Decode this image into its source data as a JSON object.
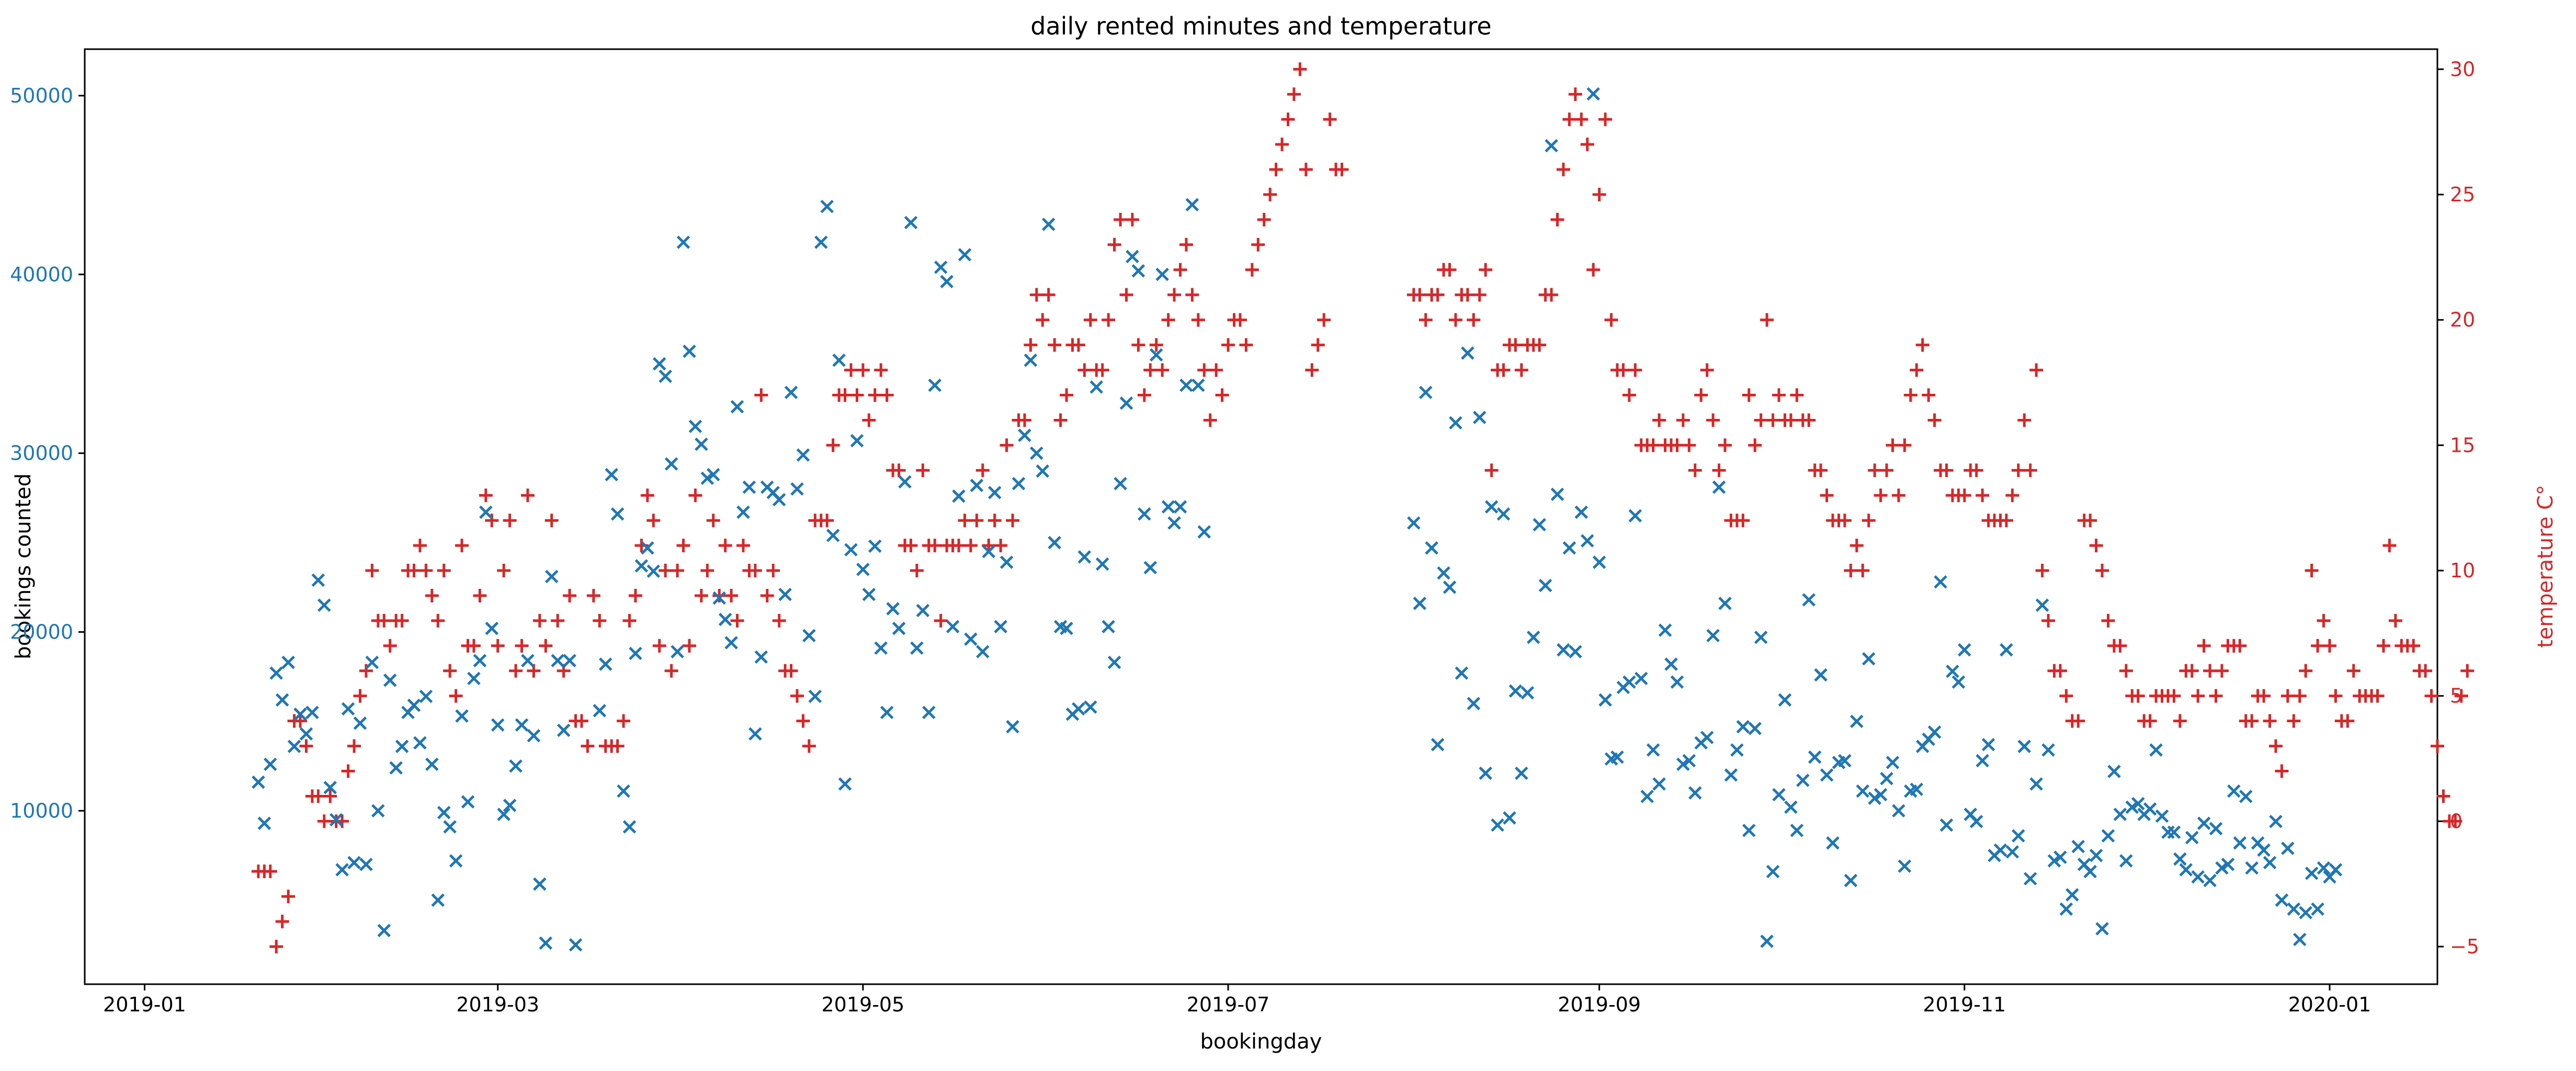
{
  "chart_data": {
    "type": "scatter",
    "title": "daily rented minutes and temperature",
    "xlabel": "bookingday",
    "ylabel_left": "bookings counted",
    "ylabel_right": "temperature C°",
    "xlim": [
      "2018-12-22",
      "2020-01-19"
    ],
    "ylim_left": [
      300,
      52600
    ],
    "ylim_right": [
      -6.5,
      30.8
    ],
    "x_ticks": [
      "2019-01-01",
      "2019-03-01",
      "2019-05-01",
      "2019-07-01",
      "2019-09-01",
      "2019-11-01",
      "2020-01-01"
    ],
    "x_tick_labels": [
      "2019-01",
      "2019-03",
      "2019-05",
      "2019-07",
      "2019-09",
      "2019-11",
      "2020-01"
    ],
    "y_left_ticks": [
      10000,
      20000,
      30000,
      40000,
      50000
    ],
    "y_right_ticks": [
      -5,
      0,
      5,
      10,
      15,
      20,
      25,
      30
    ],
    "grid": false,
    "colors": {
      "bookings": "#1f77b4",
      "temperature": "#d62728"
    },
    "series": [
      {
        "axis": "left",
        "marker": "x",
        "start_date": "2019-01-20",
        "values": [
          11600,
          9300,
          12600,
          17700,
          16200,
          18300,
          13600,
          15400,
          14300,
          15500,
          22900,
          21500,
          11300,
          9500,
          6700,
          15700,
          7100,
          14900,
          7000,
          18300,
          10000,
          3300,
          17300,
          12400,
          13600,
          15500,
          15900,
          13800,
          16400,
          12600,
          5000,
          9900,
          9100,
          7200,
          15300,
          10500,
          17400,
          18400,
          26700,
          20200,
          14800,
          9800,
          10300,
          12500,
          14800,
          18400,
          14200,
          5900,
          2600,
          23100,
          18400,
          14500,
          18400,
          2500
        ],
        "gaps": [
          {
            "start_date": "2019-03-18",
            "values": [
              15600,
              18200,
              28800,
              26600,
              11100,
              9100,
              18800,
              23700,
              24700,
              23400,
              35000,
              34300,
              29400,
              18900,
              41800,
              35700,
              31500,
              30500,
              28600,
              28800,
              21900,
              20700,
              19400,
              32600,
              26700,
              28100,
              14300,
              18600,
              28100,
              27800,
              27400,
              22100,
              33400,
              28000,
              29900,
              19800,
              16400,
              41800,
              43800,
              25400,
              35200,
              11500,
              24600,
              30700,
              23500,
              22100,
              24800,
              19100,
              15500,
              21300,
              20200,
              28400,
              42900,
              19100,
              21200,
              15500,
              33800,
              40400,
              39600,
              20300,
              27600,
              41100,
              19600,
              28200,
              18900,
              24500,
              27800,
              20300,
              23900,
              14700,
              28300,
              31000,
              35200,
              30000,
              29000,
              42800,
              25000,
              20300,
              20200,
              15400,
              15700,
              24200,
              15800,
              33700,
              23800,
              20300,
              18300,
              28300,
              32800,
              41000,
              40200,
              26600,
              23600,
              35500,
              40000,
              27000,
              26100,
              27000,
              33800,
              43900,
              33800,
              25600
            ]
          },
          {
            "start_date": "2019-08-01",
            "values": [
              26100,
              21600,
              33400,
              24700,
              13700,
              23300,
              22500,
              31700,
              17700,
              35600,
              16000,
              32000,
              12100,
              27000,
              9200,
              26600,
              9600,
              16700,
              12100,
              16600,
              19700,
              26000,
              22600,
              47200,
              27700,
              19000,
              24700,
              18900,
              26700,
              25100,
              50100,
              23900,
              16200,
              12900,
              13000,
              16900,
              17200,
              26500,
              17400,
              10800,
              13400,
              11500,
              20100,
              18200,
              17200,
              12600,
              12800,
              11000,
              13800,
              14100,
              19800,
              28100,
              21600,
              12000,
              13400,
              14700,
              8900,
              14600,
              19700,
              2700,
              6600,
              10900,
              16200,
              10200,
              8900,
              11700,
              21800,
              13000,
              17600,
              12000,
              8200,
              12700,
              12800,
              6100,
              15000,
              11100,
              18500,
              10700,
              10900,
              11800,
              12700,
              10000,
              6900,
              11100,
              11200,
              13600,
              14000,
              14400,
              22800,
              9200,
              17800,
              17200,
              19000,
              9800,
              9400,
              12800,
              13700,
              7500,
              7800,
              19000,
              7700,
              8600,
              13600,
              6200,
              11500,
              21500,
              13400,
              7200,
              7400,
              4500,
              5300,
              8000,
              7000,
              6600,
              7500,
              3400,
              8600,
              12200,
              9800,
              7200,
              10200,
              10400,
              9800,
              10100,
              13400,
              9700,
              8800,
              8800,
              7300,
              6700,
              8500,
              6300,
              9300,
              6100,
              9000,
              6800,
              7000,
              11100,
              8200,
              10800,
              6800,
              8200,
              7800,
              7100,
              9400,
              5000,
              7900,
              4500,
              2800,
              4300,
              6500,
              4500,
              6800,
              6300,
              6700
            ]
          }
        ]
      },
      {
        "axis": "right",
        "marker": "+",
        "start_date": "2019-01-20",
        "values": [
          -2,
          -2,
          -2,
          -5,
          -4,
          -3,
          4,
          4,
          3,
          1,
          1,
          0,
          1,
          0,
          0,
          2,
          3,
          5,
          6,
          10,
          8,
          8,
          7,
          8,
          8,
          10,
          10,
          11,
          10,
          9,
          8,
          10,
          6,
          5,
          11,
          7,
          7,
          9,
          13,
          12,
          7,
          10,
          12,
          6,
          7,
          13,
          6,
          8,
          7,
          12,
          8,
          6,
          9,
          4,
          4,
          3,
          9,
          8,
          3,
          3,
          3,
          4,
          8,
          9
        ],
        "gaps": [
          {
            "start_date": "2019-03-24",
            "values": [
              9,
              11,
              13,
              12,
              7,
              10,
              6,
              10,
              11,
              7,
              13,
              9,
              10,
              12,
              9,
              11,
              9,
              8,
              11,
              10,
              10,
              17,
              9,
              10,
              8,
              6,
              6,
              5,
              4,
              3,
              12,
              12,
              12,
              15,
              17,
              17,
              18,
              17,
              18,
              16,
              17,
              18,
              17,
              14,
              14,
              11,
              11,
              10,
              14,
              11,
              11,
              8,
              11,
              11,
              11,
              12,
              11,
              12,
              14,
              11,
              12,
              11,
              15,
              12,
              16,
              16,
              19,
              21,
              20,
              21,
              19,
              16,
              17,
              19,
              19,
              18,
              20,
              18,
              18,
              20,
              23,
              24,
              21,
              24,
              19,
              17,
              18,
              19,
              18,
              20,
              21,
              22,
              23,
              21,
              20,
              18,
              16,
              18,
              17,
              19,
              20,
              20,
              19,
              22,
              23,
              24,
              25,
              26,
              27,
              28,
              29,
              30,
              26,
              18,
              19,
              20,
              28,
              26,
              26
            ]
          },
          {
            "start_date": "2019-08-01",
            "values": [
              21,
              21,
              20,
              21,
              21,
              22,
              22,
              20,
              21,
              21,
              20,
              21,
              22,
              14,
              18,
              18,
              19,
              19,
              18,
              19,
              19,
              19,
              21,
              21,
              24,
              26,
              28,
              29,
              28,
              27,
              22,
              25,
              28,
              20,
              18,
              18,
              17,
              18,
              15,
              15,
              15,
              16,
              15,
              15,
              15,
              16,
              15,
              14,
              17,
              18,
              16,
              14,
              15,
              12,
              12,
              12,
              17,
              15,
              16,
              20,
              16,
              17,
              16,
              16,
              17,
              16,
              16,
              14,
              14,
              13,
              12,
              12,
              12,
              10,
              11,
              10,
              12,
              14,
              13,
              14,
              15,
              13,
              15,
              17,
              18,
              19,
              17,
              16,
              14,
              14,
              13,
              13,
              13,
              14,
              14,
              13,
              12,
              12,
              12,
              12,
              13,
              14,
              16,
              14,
              18,
              10,
              8,
              6,
              6,
              5,
              4,
              4,
              12,
              12,
              11,
              10,
              8,
              7,
              7,
              6,
              5,
              5,
              4,
              4,
              5,
              5,
              5,
              5,
              4,
              6,
              6,
              5,
              7,
              6,
              5,
              6,
              7,
              7,
              7,
              4,
              4,
              5,
              5,
              4,
              3,
              2,
              5,
              4,
              5,
              6,
              10,
              7,
              8,
              7,
              5,
              4,
              4,
              6,
              5,
              5,
              5,
              5,
              7,
              11,
              8,
              7,
              7,
              7,
              6,
              6,
              5,
              3,
              1,
              0,
              0,
              5,
              6
            ]
          }
        ]
      }
    ]
  }
}
